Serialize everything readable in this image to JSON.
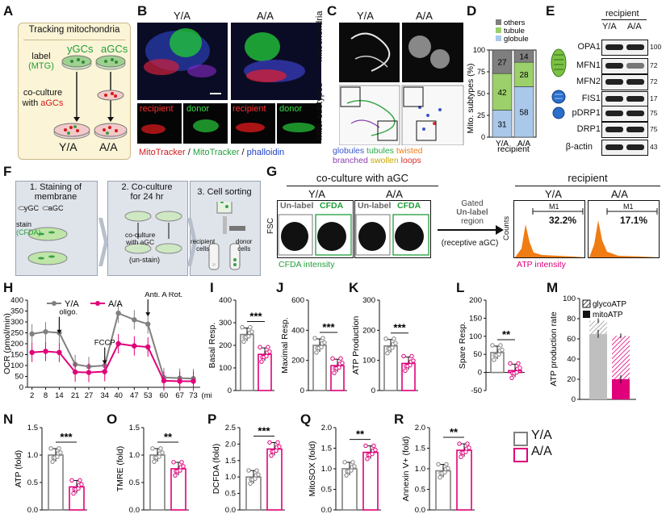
{
  "panel_letters": {
    "A": "A",
    "B": "B",
    "C": "C",
    "D": "D",
    "E": "E",
    "F": "F",
    "G": "G",
    "H": "H",
    "I": "I",
    "J": "J",
    "K": "K",
    "L": "L",
    "M": "M",
    "N": "N",
    "O": "O",
    "P": "P",
    "Q": "Q",
    "R": "R"
  },
  "colors": {
    "ya": "#808080",
    "aa": "#e0007a",
    "green": "#1f9e3a",
    "red": "#d21a1a",
    "orange": "#f07c14",
    "cream": "#fbf4d6",
    "gray_box": "#dfe3ea"
  },
  "A": {
    "title": "Tracking mitochondria",
    "label_prefix": "label",
    "label_mtg": "(MTG)",
    "ygcs": "yGCs",
    "agcs": "aGCs",
    "cocult_line1": "co-culture",
    "cocult_line2": "with",
    "cocult_agcs": "aGCs",
    "ya": "Y/A",
    "aa": "A/A"
  },
  "B": {
    "ya": "Y/A",
    "aa": "A/A",
    "recipient": "recipient",
    "donor": "donor",
    "legend_mito": "MitoTracker",
    "legend_sep": " / ",
    "legend_mtg": "MitoTracker",
    "legend_phal": "phalloidin"
  },
  "C": {
    "ya": "Y/A",
    "aa": "A/A",
    "ylab_top": "Mitochondria",
    "ylab_bot": "Mito. subtypes",
    "legend": [
      {
        "text": "globules",
        "color": "#3b55c9"
      },
      {
        "text": "tubules",
        "color": "#2aa84a"
      },
      {
        "text": "twisted",
        "color": "#f07c14"
      },
      {
        "text": "branched",
        "color": "#8a3fb0"
      },
      {
        "text": "swollen",
        "color": "#e0c21a"
      },
      {
        "text": "loops",
        "color": "#e02a2a"
      }
    ]
  },
  "D": {
    "ylabel": "Mito. subtypes (%)",
    "legend": [
      {
        "text": "others",
        "color": "#7f7f7f"
      },
      {
        "text": "tubule",
        "color": "#9bd06a"
      },
      {
        "text": "globule",
        "color": "#a9c8ea"
      }
    ],
    "yticks": [
      "100",
      "75",
      "50",
      "25",
      "0"
    ],
    "xticks": [
      "Y/A",
      "A/A"
    ],
    "xgroup": "recipient",
    "bars": [
      {
        "name": "Y/A",
        "globule": 31,
        "tubule": 42,
        "others": 27
      },
      {
        "name": "A/A",
        "globule": 58,
        "tubule": 28,
        "others": 14
      }
    ]
  },
  "E": {
    "recipient": "recipient",
    "ya": "Y/A",
    "aa": "A/A",
    "proteins": [
      {
        "name": "OPA1",
        "mw": "100"
      },
      {
        "name": "MFN1",
        "mw": "72"
      },
      {
        "name": "MFN2",
        "mw": "72"
      },
      {
        "name": "FIS1",
        "mw": "17"
      },
      {
        "name": "pDRP1",
        "mw": "75"
      },
      {
        "name": "DRP1",
        "mw": "75"
      },
      {
        "name": "β-actin",
        "mw": "43"
      }
    ]
  },
  "F": {
    "step1_line1": "1. Staining of",
    "step1_line2": "membrane",
    "step2_line1": "2. Co-culture",
    "step2_line2": "for 24 hr",
    "step3": "3. Cell sorting",
    "ygc": "yGC",
    "agc": "aGC",
    "stain": "stain",
    "cfda": "(CFDA)",
    "coculture1": "co-culture",
    "coculture2": "with aGC",
    "unstain": "(un-stain)",
    "recipient1": "recipient",
    "recipient2": "cells",
    "donor1": "donor",
    "donor2": "cells"
  },
  "G": {
    "title_left": "co-culture with aGC",
    "ya": "Y/A",
    "aa": "A/A",
    "unlabel": "Un-label",
    "cfda": "CFDA",
    "fsc": "FSC",
    "xlabel": "CFDA intensity",
    "gated1": "Gated",
    "gated2": "Un-label",
    "gated3": "region",
    "receptive": "(receptive aGC)",
    "recipient": "recipient",
    "counts": "Counts",
    "atp": "ATP intensity",
    "m1": "M1",
    "pct_ya": "32.2%",
    "pct_aa": "17.1%"
  },
  "chart_data": [
    {
      "id": "H",
      "type": "line",
      "ylabel": "OCR (pmol/min)",
      "xlabel": "(min)",
      "x": [
        2,
        8,
        14,
        21,
        27,
        34,
        40,
        47,
        53,
        60,
        67,
        73
      ],
      "yticks": [
        0,
        50,
        100,
        150,
        200,
        250,
        300,
        350,
        400
      ],
      "ylim": [
        0,
        400
      ],
      "legend_ya": "Y/A",
      "legend_aa": "A/A",
      "annotations": [
        "oligo.",
        "FCCP",
        "Anti. A Rot."
      ],
      "series": [
        {
          "name": "Y/A",
          "values": [
            245,
            255,
            250,
            105,
            95,
            100,
            340,
            310,
            290,
            45,
            42,
            40
          ]
        },
        {
          "name": "A/A",
          "values": [
            160,
            165,
            160,
            70,
            68,
            72,
            200,
            190,
            185,
            30,
            28,
            28
          ]
        }
      ]
    },
    {
      "id": "I",
      "type": "bar",
      "ylabel": "Basal Resp.",
      "yticks": [
        0,
        100,
        200,
        300,
        400
      ],
      "ylim": [
        0,
        400
      ],
      "sig": "***",
      "values": [
        248,
        160
      ]
    },
    {
      "id": "J",
      "type": "bar",
      "ylabel": "Maximal Resp.",
      "yticks": [
        0,
        200,
        400,
        600
      ],
      "ylim": [
        0,
        600
      ],
      "sig": "***",
      "values": [
        300,
        165
      ]
    },
    {
      "id": "K",
      "type": "bar",
      "ylabel": "ATP Production",
      "yticks": [
        0,
        100,
        200,
        300
      ],
      "ylim": [
        0,
        300
      ],
      "sig": "***",
      "values": [
        148,
        90
      ]
    },
    {
      "id": "L",
      "type": "bar",
      "ylabel": "Spare Resp.",
      "yticks": [
        -50,
        0,
        50,
        100,
        150,
        200
      ],
      "ylim": [
        -50,
        200
      ],
      "sig": "**",
      "values": [
        55,
        5
      ]
    },
    {
      "id": "M",
      "type": "bar",
      "ylabel": "ATP production rate",
      "yticks": [
        0,
        20,
        40,
        60,
        80,
        100
      ],
      "ylim": [
        0,
        100
      ],
      "legend": [
        "glycoATP",
        "mitoATP"
      ],
      "stacks": [
        {
          "mito": 65,
          "glyco": 13
        },
        {
          "mito": 20,
          "glyco": 43
        }
      ]
    },
    {
      "id": "N",
      "type": "bar",
      "ylabel": "ATP (fold)",
      "yticks": [
        "0.0",
        "0.5",
        "1.0",
        "1.5"
      ],
      "ylim": [
        0,
        1.5
      ],
      "sig": "***",
      "values": [
        1.0,
        0.42
      ]
    },
    {
      "id": "O",
      "type": "bar",
      "ylabel": "TMRE (fold)",
      "yticks": [
        "0.0",
        "0.5",
        "1.0",
        "1.5"
      ],
      "ylim": [
        0,
        1.5
      ],
      "sig": "**",
      "values": [
        1.0,
        0.75
      ]
    },
    {
      "id": "P",
      "type": "bar",
      "ylabel": "DCFDA (fold)",
      "yticks": [
        "0.0",
        "0.5",
        "1.0",
        "1.5",
        "2.0",
        "2.5"
      ],
      "ylim": [
        0,
        2.5
      ],
      "sig": "***",
      "values": [
        1.0,
        1.85
      ]
    },
    {
      "id": "Q",
      "type": "bar",
      "ylabel": "MitoSOX (fold)",
      "yticks": [
        "0.0",
        "0.5",
        "1.0",
        "1.5",
        "2.0"
      ],
      "ylim": [
        0,
        2.0
      ],
      "sig": "**",
      "values": [
        1.0,
        1.4
      ]
    },
    {
      "id": "R",
      "type": "bar",
      "ylabel": "Annexin V+ (fold)",
      "yticks": [
        "0.0",
        "0.5",
        "1.0",
        "1.5",
        "2.0"
      ],
      "ylim": [
        0,
        2.0
      ],
      "sig": "**",
      "values": [
        0.95,
        1.45
      ]
    }
  ],
  "legend_bottom": {
    "ya": "Y/A",
    "aa": "A/A"
  }
}
